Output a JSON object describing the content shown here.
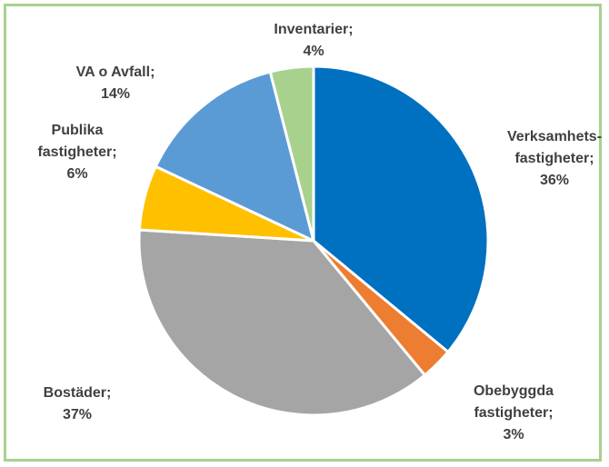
{
  "chart_data": {
    "type": "pie",
    "categories": [
      "Verksamhets-fastigheter",
      "Obebyggda fastigheter",
      "Bostäder",
      "Publika fastigheter",
      "VA o Avfall",
      "Inventarier"
    ],
    "values": [
      36,
      3,
      37,
      6,
      14,
      4
    ],
    "value_labels": [
      "36%",
      "3%",
      "37%",
      "6%",
      "14%",
      "4%"
    ],
    "separator": ";",
    "colors": [
      "#0070c0",
      "#ed7d31",
      "#a5a5a5",
      "#ffc000",
      "#5b9bd5",
      "#a9d18e"
    ]
  }
}
